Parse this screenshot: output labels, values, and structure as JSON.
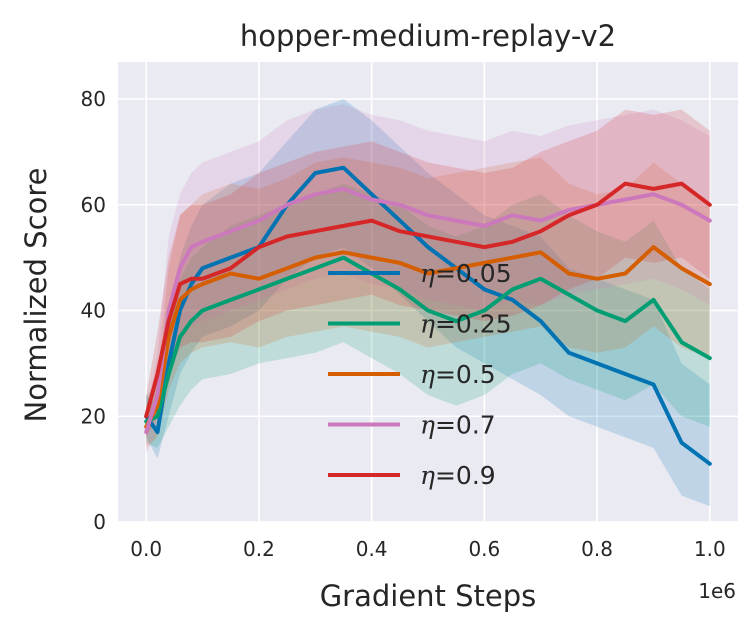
{
  "chart_data": {
    "type": "line",
    "title": "hopper-medium-replay-v2",
    "xlabel": "Gradient Steps",
    "ylabel": "Normalized Score",
    "x_offset_label": "1e6",
    "xlim": [
      -0.05,
      1.05
    ],
    "ylim": [
      0,
      87
    ],
    "x_ticks": [
      0.0,
      0.2,
      0.4,
      0.6,
      0.8,
      1.0
    ],
    "x_tick_labels": [
      "0.0",
      "0.2",
      "0.4",
      "0.6",
      "0.8",
      "1.0"
    ],
    "y_ticks": [
      0,
      20,
      40,
      60,
      80
    ],
    "y_tick_labels": [
      "0",
      "20",
      "40",
      "60",
      "80"
    ],
    "grid": true,
    "legend_position": "center",
    "series": [
      {
        "name": "η=0.05",
        "eta_symbol": "η",
        "eta_value": "=0.05",
        "color": "#0173b2",
        "x": [
          0.0,
          0.02,
          0.04,
          0.06,
          0.08,
          0.1,
          0.15,
          0.2,
          0.25,
          0.3,
          0.35,
          0.4,
          0.45,
          0.5,
          0.55,
          0.6,
          0.65,
          0.7,
          0.75,
          0.8,
          0.85,
          0.9,
          0.95,
          1.0
        ],
        "y": [
          20,
          17,
          30,
          40,
          45,
          48,
          50,
          52,
          60,
          66,
          67,
          62,
          57,
          52,
          48,
          44,
          42,
          38,
          32,
          30,
          28,
          26,
          15,
          11
        ],
        "band": [
          [
            16,
            24
          ],
          [
            12,
            22
          ],
          [
            20,
            40
          ],
          [
            28,
            50
          ],
          [
            32,
            56
          ],
          [
            35,
            60
          ],
          [
            37,
            64
          ],
          [
            40,
            66
          ],
          [
            46,
            72
          ],
          [
            50,
            78
          ],
          [
            52,
            80
          ],
          [
            48,
            76
          ],
          [
            43,
            71
          ],
          [
            38,
            66
          ],
          [
            33,
            62
          ],
          [
            30,
            58
          ],
          [
            27,
            56
          ],
          [
            24,
            54
          ],
          [
            20,
            48
          ],
          [
            18,
            46
          ],
          [
            16,
            44
          ],
          [
            14,
            42
          ],
          [
            5,
            30
          ],
          [
            3,
            26
          ]
        ]
      },
      {
        "name": "η=0.25",
        "eta_symbol": "η",
        "eta_value": "=0.25",
        "color": "#029e73",
        "x": [
          0.0,
          0.02,
          0.04,
          0.06,
          0.08,
          0.1,
          0.15,
          0.2,
          0.25,
          0.3,
          0.35,
          0.4,
          0.45,
          0.5,
          0.55,
          0.6,
          0.65,
          0.7,
          0.75,
          0.8,
          0.85,
          0.9,
          0.95,
          1.0
        ],
        "y": [
          19,
          20,
          28,
          35,
          38,
          40,
          42,
          44,
          46,
          48,
          50,
          47,
          44,
          40,
          38,
          40,
          44,
          46,
          43,
          40,
          38,
          42,
          34,
          31
        ],
        "band": [
          [
            15,
            24
          ],
          [
            14,
            26
          ],
          [
            18,
            38
          ],
          [
            22,
            46
          ],
          [
            25,
            50
          ],
          [
            27,
            52
          ],
          [
            28,
            56
          ],
          [
            30,
            58
          ],
          [
            31,
            60
          ],
          [
            32,
            62
          ],
          [
            34,
            64
          ],
          [
            31,
            62
          ],
          [
            28,
            60
          ],
          [
            24,
            56
          ],
          [
            22,
            54
          ],
          [
            24,
            56
          ],
          [
            28,
            60
          ],
          [
            30,
            62
          ],
          [
            27,
            58
          ],
          [
            25,
            55
          ],
          [
            23,
            53
          ],
          [
            26,
            57
          ],
          [
            20,
            48
          ],
          [
            18,
            44
          ]
        ]
      },
      {
        "name": "η=0.5",
        "eta_symbol": "η",
        "eta_value": "=0.5",
        "color": "#d55e00",
        "x": [
          0.0,
          0.02,
          0.04,
          0.06,
          0.08,
          0.1,
          0.15,
          0.2,
          0.25,
          0.3,
          0.35,
          0.4,
          0.45,
          0.5,
          0.55,
          0.6,
          0.65,
          0.7,
          0.75,
          0.8,
          0.85,
          0.9,
          0.95,
          1.0
        ],
        "y": [
          18,
          22,
          35,
          42,
          44,
          45,
          47,
          46,
          48,
          50,
          51,
          50,
          49,
          47,
          48,
          49,
          50,
          51,
          47,
          46,
          47,
          52,
          48,
          45
        ],
        "band": [
          [
            14,
            22
          ],
          [
            16,
            28
          ],
          [
            25,
            48
          ],
          [
            30,
            58
          ],
          [
            32,
            60
          ],
          [
            33,
            62
          ],
          [
            34,
            64
          ],
          [
            33,
            63
          ],
          [
            35,
            65
          ],
          [
            36,
            68
          ],
          [
            37,
            69
          ],
          [
            36,
            68
          ],
          [
            35,
            67
          ],
          [
            33,
            65
          ],
          [
            34,
            66
          ],
          [
            35,
            67
          ],
          [
            36,
            68
          ],
          [
            37,
            69
          ],
          [
            33,
            64
          ],
          [
            32,
            62
          ],
          [
            33,
            63
          ],
          [
            37,
            68
          ],
          [
            33,
            64
          ],
          [
            31,
            60
          ]
        ]
      },
      {
        "name": "η=0.7",
        "eta_symbol": "η",
        "eta_value": "=0.7",
        "color": "#cc78bc",
        "x": [
          0.0,
          0.02,
          0.04,
          0.06,
          0.08,
          0.1,
          0.15,
          0.2,
          0.25,
          0.3,
          0.35,
          0.4,
          0.45,
          0.5,
          0.55,
          0.6,
          0.65,
          0.7,
          0.75,
          0.8,
          0.85,
          0.9,
          0.95,
          1.0
        ],
        "y": [
          17,
          24,
          40,
          48,
          52,
          53,
          55,
          57,
          60,
          62,
          63,
          61,
          60,
          58,
          57,
          56,
          58,
          57,
          59,
          60,
          61,
          62,
          60,
          57
        ],
        "band": [
          [
            13,
            21
          ],
          [
            17,
            32
          ],
          [
            28,
            54
          ],
          [
            34,
            62
          ],
          [
            37,
            66
          ],
          [
            38,
            68
          ],
          [
            40,
            70
          ],
          [
            42,
            72
          ],
          [
            44,
            76
          ],
          [
            46,
            78
          ],
          [
            47,
            79
          ],
          [
            45,
            77
          ],
          [
            44,
            76
          ],
          [
            42,
            74
          ],
          [
            41,
            73
          ],
          [
            40,
            72
          ],
          [
            42,
            74
          ],
          [
            41,
            73
          ],
          [
            43,
            75
          ],
          [
            44,
            76
          ],
          [
            45,
            77
          ],
          [
            46,
            78
          ],
          [
            44,
            76
          ],
          [
            41,
            73
          ]
        ]
      },
      {
        "name": "η=0.9",
        "eta_symbol": "η",
        "eta_value": "=0.9",
        "color": "#d62728",
        "x": [
          0.0,
          0.02,
          0.04,
          0.06,
          0.08,
          0.1,
          0.15,
          0.2,
          0.25,
          0.3,
          0.35,
          0.4,
          0.45,
          0.5,
          0.55,
          0.6,
          0.65,
          0.7,
          0.75,
          0.8,
          0.85,
          0.9,
          0.95,
          1.0
        ],
        "y": [
          20,
          28,
          38,
          45,
          46,
          46,
          48,
          52,
          54,
          55,
          56,
          57,
          55,
          54,
          53,
          52,
          53,
          55,
          58,
          60,
          64,
          63,
          64,
          60
        ],
        "band": [
          [
            16,
            24
          ],
          [
            20,
            36
          ],
          [
            28,
            50
          ],
          [
            33,
            58
          ],
          [
            34,
            60
          ],
          [
            34,
            60
          ],
          [
            35,
            62
          ],
          [
            38,
            66
          ],
          [
            40,
            68
          ],
          [
            41,
            70
          ],
          [
            42,
            71
          ],
          [
            43,
            72
          ],
          [
            41,
            70
          ],
          [
            40,
            68
          ],
          [
            39,
            67
          ],
          [
            38,
            66
          ],
          [
            39,
            67
          ],
          [
            41,
            70
          ],
          [
            44,
            72
          ],
          [
            46,
            74
          ],
          [
            50,
            78
          ],
          [
            49,
            77
          ],
          [
            50,
            78
          ],
          [
            46,
            74
          ]
        ]
      }
    ]
  }
}
